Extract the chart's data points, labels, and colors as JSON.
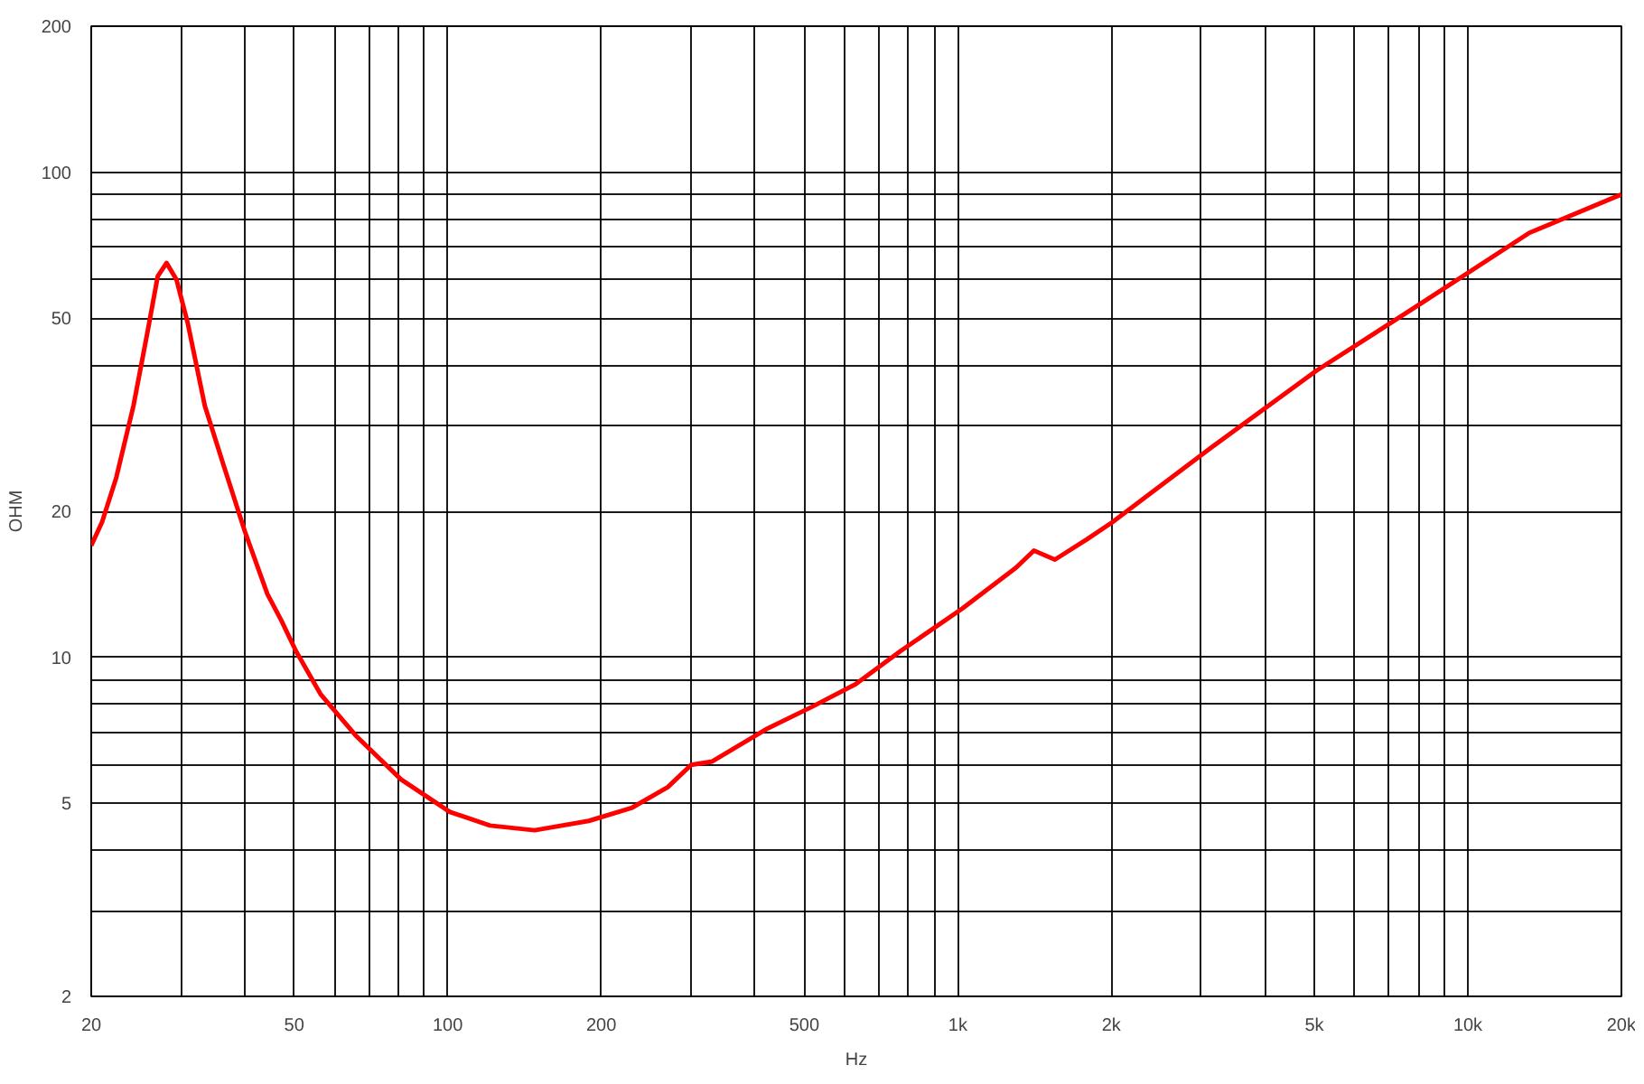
{
  "chart_data": {
    "type": "line",
    "xlabel": "Hz",
    "ylabel": "OHM",
    "log": "xy",
    "grid": true,
    "marker": "none",
    "line_style": "solid",
    "xlim": [
      20,
      20000
    ],
    "ylim": [
      2,
      200
    ],
    "xticks": [
      20,
      {
        "value": 30,
        "label": null
      },
      {
        "value": 40,
        "label": null
      },
      50,
      {
        "value": 60,
        "label": null
      },
      {
        "value": 70,
        "label": null
      },
      {
        "value": 80,
        "label": null
      },
      {
        "value": 90,
        "label": null
      },
      100,
      200,
      {
        "value": 300,
        "label": null
      },
      {
        "value": 400,
        "label": null
      },
      500,
      {
        "value": 600,
        "label": null
      },
      {
        "value": 700,
        "label": null
      },
      {
        "value": 800,
        "label": null
      },
      {
        "value": 900,
        "label": null
      },
      {
        "value": 1000,
        "label": "1k"
      },
      {
        "value": 2000,
        "label": "2k"
      },
      {
        "value": 3000,
        "label": null
      },
      {
        "value": 4000,
        "label": null
      },
      {
        "value": 5000,
        "label": "5k"
      },
      {
        "value": 6000,
        "label": null
      },
      {
        "value": 7000,
        "label": null
      },
      {
        "value": 8000,
        "label": null
      },
      {
        "value": 9000,
        "label": null
      },
      {
        "value": 10000,
        "label": "10k"
      },
      {
        "value": 20000,
        "label": "20k"
      }
    ],
    "yticks": [
      2,
      {
        "value": 3,
        "label": null
      },
      {
        "value": 4,
        "label": null
      },
      5,
      {
        "value": 6,
        "label": null
      },
      {
        "value": 7,
        "label": null
      },
      {
        "value": 8,
        "label": null
      },
      {
        "value": 9,
        "label": null
      },
      10,
      20,
      {
        "value": 30,
        "label": null
      },
      {
        "value": 40,
        "label": null
      },
      50,
      {
        "value": 60,
        "label": null
      },
      {
        "value": 70,
        "label": null
      },
      {
        "value": 80,
        "label": null
      },
      {
        "value": 90,
        "label": null
      },
      100,
      200
    ],
    "series": [
      {
        "color": "#ff0000",
        "x": [
          20,
          21,
          22.4,
          24.2,
          25.8,
          27,
          28.1,
          29.4,
          30.9,
          33.4,
          36.3,
          40,
          44.3,
          47.2,
          50.4,
          56.3,
          66,
          81,
          101,
          121,
          148,
          189,
          230,
          270,
          300,
          330,
          420,
          517,
          630,
          772,
          1020,
          1300,
          1410,
          1550,
          1790,
          2010,
          3130,
          5050,
          8170,
          13200,
          20000
        ],
        "values": [
          17,
          19,
          23.5,
          33,
          47,
          61,
          65,
          60,
          49,
          33,
          25,
          18.2,
          13.5,
          11.9,
          10.3,
          8.4,
          6.9,
          5.6,
          4.8,
          4.5,
          4.4,
          4.6,
          4.9,
          5.4,
          6,
          6.1,
          7.1,
          7.9,
          8.8,
          10.3,
          12.6,
          15.3,
          16.6,
          15.9,
          17.5,
          19,
          27,
          39,
          54,
          75,
          90
        ]
      }
    ]
  }
}
